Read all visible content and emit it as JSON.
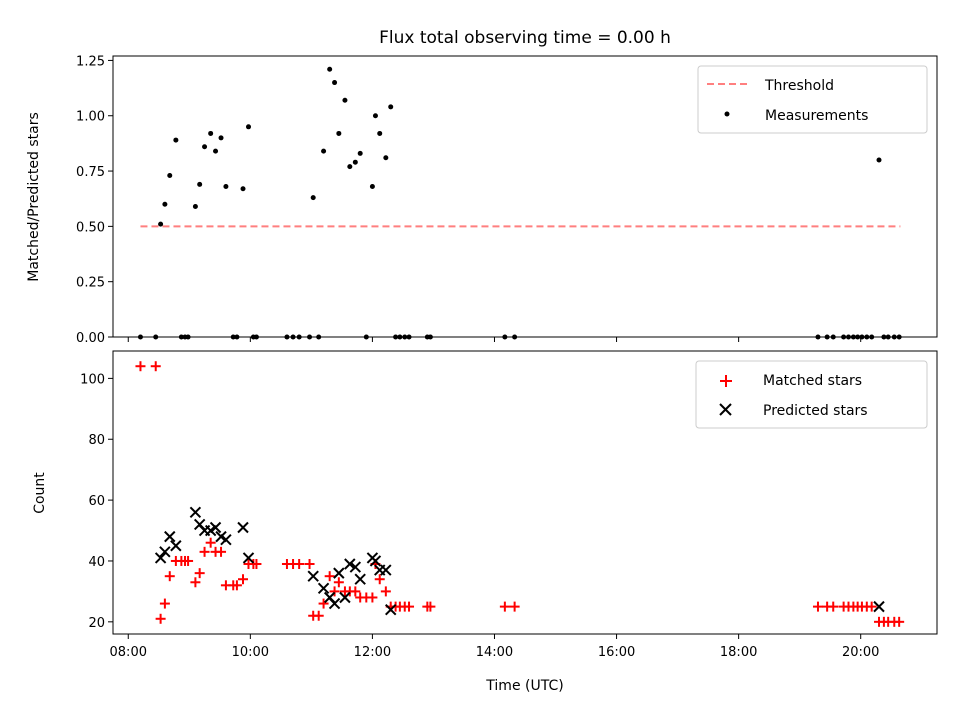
{
  "chart_data": [
    {
      "type": "scatter",
      "title": "Flux total observing time = 0.00 h",
      "ylabel": "Matched/Predicted stars",
      "xlabel": "",
      "xlim": [
        7.75,
        21.25
      ],
      "ylim": [
        0,
        1.27
      ],
      "yticks": [
        "0.00",
        "0.25",
        "0.50",
        "0.75",
        "1.00",
        "1.25"
      ],
      "grid": false,
      "legend_position": "top-right",
      "threshold": {
        "name": "Threshold",
        "y": 0.5,
        "x_range": [
          8.2,
          20.65
        ],
        "color": "#ff7f7f",
        "style": "dashed"
      },
      "series": [
        {
          "name": "Measurements",
          "color": "#000000",
          "marker": "dot",
          "points": [
            [
              8.2,
              0
            ],
            [
              8.45,
              0
            ],
            [
              8.53,
              0.51
            ],
            [
              8.6,
              0.6
            ],
            [
              8.68,
              0.73
            ],
            [
              8.78,
              0.89
            ],
            [
              8.87,
              0
            ],
            [
              8.93,
              0
            ],
            [
              8.98,
              0
            ],
            [
              9.1,
              0.59
            ],
            [
              9.17,
              0.69
            ],
            [
              9.25,
              0.86
            ],
            [
              9.35,
              0.92
            ],
            [
              9.43,
              0.84
            ],
            [
              9.52,
              0.9
            ],
            [
              9.6,
              0.68
            ],
            [
              9.72,
              0
            ],
            [
              9.78,
              0
            ],
            [
              9.88,
              0.67
            ],
            [
              9.97,
              0.95
            ],
            [
              10.05,
              0
            ],
            [
              10.1,
              0
            ],
            [
              10.6,
              0
            ],
            [
              10.7,
              0
            ],
            [
              10.8,
              0
            ],
            [
              10.97,
              0
            ],
            [
              11.03,
              0.63
            ],
            [
              11.12,
              0
            ],
            [
              11.2,
              0.84
            ],
            [
              11.3,
              1.21
            ],
            [
              11.38,
              1.15
            ],
            [
              11.45,
              0.92
            ],
            [
              11.55,
              1.07
            ],
            [
              11.63,
              0.77
            ],
            [
              11.72,
              0.79
            ],
            [
              11.8,
              0.83
            ],
            [
              11.9,
              0
            ],
            [
              12.0,
              0.68
            ],
            [
              12.05,
              1.0
            ],
            [
              12.12,
              0.92
            ],
            [
              12.22,
              0.81
            ],
            [
              12.3,
              1.04
            ],
            [
              12.38,
              0
            ],
            [
              12.45,
              0
            ],
            [
              12.53,
              0
            ],
            [
              12.6,
              0
            ],
            [
              12.9,
              0
            ],
            [
              12.95,
              0
            ],
            [
              14.17,
              0
            ],
            [
              14.33,
              0
            ],
            [
              19.3,
              0
            ],
            [
              19.45,
              0
            ],
            [
              19.55,
              0
            ],
            [
              19.72,
              0
            ],
            [
              19.8,
              0
            ],
            [
              19.88,
              0
            ],
            [
              19.95,
              0
            ],
            [
              20.02,
              0
            ],
            [
              20.1,
              0
            ],
            [
              20.18,
              0
            ],
            [
              20.3,
              0.8
            ],
            [
              20.38,
              0
            ],
            [
              20.45,
              0
            ],
            [
              20.55,
              0
            ],
            [
              20.63,
              0
            ]
          ]
        }
      ]
    },
    {
      "type": "scatter",
      "title": "",
      "xlabel": "Time (UTC)",
      "ylabel": "Count",
      "xlim": [
        7.75,
        21.25
      ],
      "ylim": [
        16,
        109
      ],
      "xticks": [
        "08:00",
        "10:00",
        "12:00",
        "14:00",
        "16:00",
        "18:00",
        "20:00"
      ],
      "yticks": [
        "20",
        "40",
        "60",
        "80",
        "100"
      ],
      "grid": false,
      "legend_position": "top-right",
      "series": [
        {
          "name": "Matched stars",
          "color": "#ff0000",
          "marker": "plus",
          "points": [
            [
              8.2,
              104
            ],
            [
              8.45,
              104
            ],
            [
              8.53,
              21
            ],
            [
              8.6,
              26
            ],
            [
              8.68,
              35
            ],
            [
              8.78,
              40
            ],
            [
              8.87,
              40
            ],
            [
              8.93,
              40
            ],
            [
              8.98,
              40
            ],
            [
              9.1,
              33
            ],
            [
              9.17,
              36
            ],
            [
              9.25,
              43
            ],
            [
              9.35,
              46
            ],
            [
              9.43,
              43
            ],
            [
              9.52,
              43
            ],
            [
              9.6,
              32
            ],
            [
              9.72,
              32
            ],
            [
              9.78,
              32
            ],
            [
              9.88,
              34
            ],
            [
              9.97,
              39
            ],
            [
              10.05,
              39
            ],
            [
              10.1,
              39
            ],
            [
              10.6,
              39
            ],
            [
              10.7,
              39
            ],
            [
              10.8,
              39
            ],
            [
              10.97,
              39
            ],
            [
              11.03,
              22
            ],
            [
              11.12,
              22
            ],
            [
              11.2,
              26
            ],
            [
              11.3,
              35
            ],
            [
              11.38,
              30
            ],
            [
              11.45,
              33
            ],
            [
              11.55,
              30
            ],
            [
              11.63,
              30
            ],
            [
              11.72,
              30
            ],
            [
              11.8,
              28
            ],
            [
              11.9,
              28
            ],
            [
              12.0,
              28
            ],
            [
              12.05,
              39
            ],
            [
              12.12,
              34
            ],
            [
              12.22,
              30
            ],
            [
              12.3,
              25
            ],
            [
              12.38,
              25
            ],
            [
              12.45,
              25
            ],
            [
              12.53,
              25
            ],
            [
              12.6,
              25
            ],
            [
              12.9,
              25
            ],
            [
              12.95,
              25
            ],
            [
              14.17,
              25
            ],
            [
              14.33,
              25
            ],
            [
              19.3,
              25
            ],
            [
              19.45,
              25
            ],
            [
              19.55,
              25
            ],
            [
              19.72,
              25
            ],
            [
              19.8,
              25
            ],
            [
              19.88,
              25
            ],
            [
              19.95,
              25
            ],
            [
              20.02,
              25
            ],
            [
              20.1,
              25
            ],
            [
              20.18,
              25
            ],
            [
              20.3,
              20
            ],
            [
              20.38,
              20
            ],
            [
              20.45,
              20
            ],
            [
              20.55,
              20
            ],
            [
              20.63,
              20
            ]
          ]
        },
        {
          "name": "Predicted stars",
          "color": "#000000",
          "marker": "x",
          "points": [
            [
              8.53,
              41
            ],
            [
              8.6,
              43
            ],
            [
              8.68,
              48
            ],
            [
              8.78,
              45
            ],
            [
              9.1,
              56
            ],
            [
              9.17,
              52
            ],
            [
              9.25,
              50
            ],
            [
              9.35,
              50
            ],
            [
              9.43,
              51
            ],
            [
              9.52,
              48
            ],
            [
              9.6,
              47
            ],
            [
              9.88,
              51
            ],
            [
              9.97,
              41
            ],
            [
              11.03,
              35
            ],
            [
              11.2,
              31
            ],
            [
              11.3,
              28
            ],
            [
              11.38,
              26
            ],
            [
              11.45,
              36
            ],
            [
              11.55,
              28
            ],
            [
              11.63,
              39
            ],
            [
              11.72,
              38
            ],
            [
              11.8,
              34
            ],
            [
              12.0,
              41
            ],
            [
              12.05,
              40
            ],
            [
              12.12,
              37
            ],
            [
              12.22,
              37
            ],
            [
              12.3,
              24
            ],
            [
              20.3,
              25
            ]
          ]
        }
      ]
    }
  ]
}
